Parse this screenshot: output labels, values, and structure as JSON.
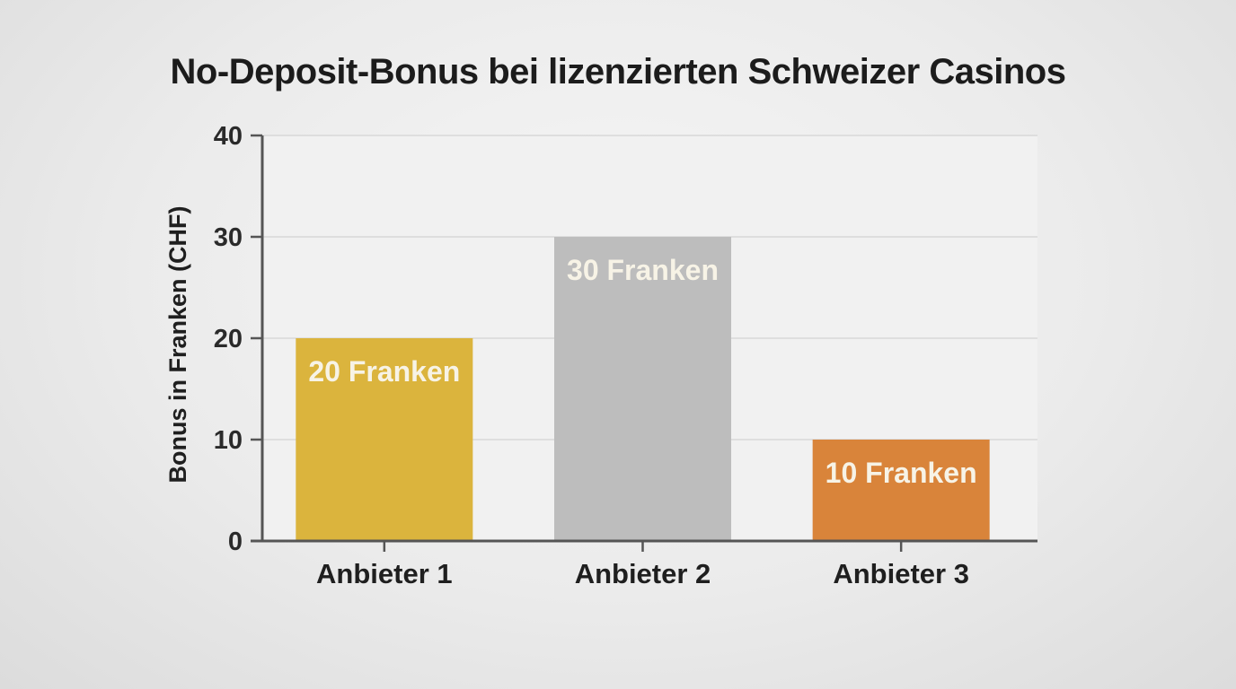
{
  "chart_data": {
    "type": "bar",
    "title": "No-Deposit-Bonus bei lizenzierten Schweizer Casinos",
    "xlabel": "",
    "ylabel": "Bonus in Franken (CHF)",
    "categories": [
      "Anbieter 1",
      "Anbieter 2",
      "Anbieter 3"
    ],
    "values": [
      20,
      30,
      10
    ],
    "data_labels": [
      "20 Franken",
      "30 Franken",
      "10 Franken"
    ],
    "colors": [
      "#dbb43d",
      "#bdbdbd",
      "#d9843a"
    ],
    "ylim": [
      0,
      40
    ],
    "yticks": [
      0,
      10,
      20,
      30,
      40
    ],
    "grid": true,
    "legend": "none"
  }
}
